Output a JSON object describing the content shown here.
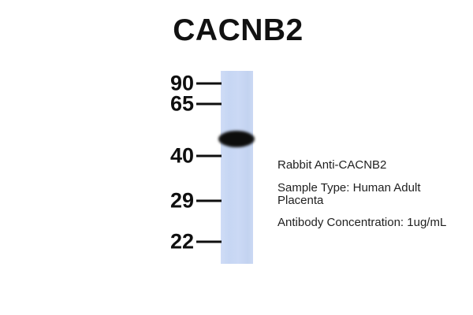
{
  "figure": {
    "title": "CACNB2"
  },
  "blot": {
    "lane_color": "#c8d8f4",
    "band_color": "#0d0d0d"
  },
  "markers": [
    {
      "label": "90"
    },
    {
      "label": "65"
    },
    {
      "label": "40"
    },
    {
      "label": "29"
    },
    {
      "label": "22"
    }
  ],
  "annotations": {
    "antibody": "Rabbit Anti-CACNB2",
    "sample": "Sample Type: Human Adult\nPlacenta",
    "concentration": "Antibody Concentration: 1ug/mL"
  }
}
